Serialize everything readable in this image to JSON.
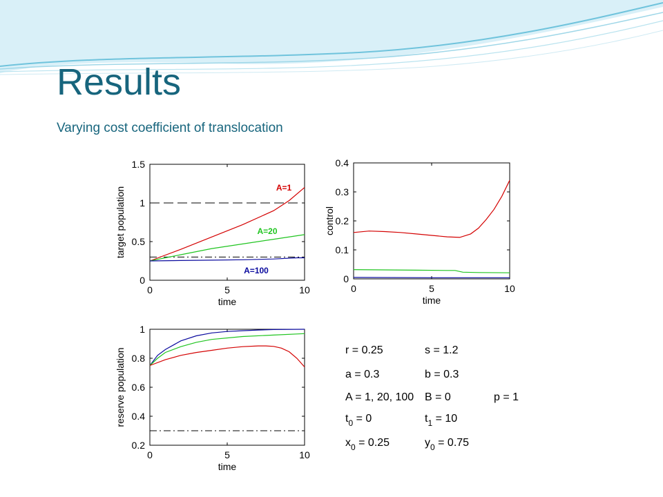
{
  "slide": {
    "title": "Results",
    "subtitle": "Varying cost coefficient of translocation"
  },
  "colors": {
    "title": "#17657d",
    "red": "#d40000",
    "green": "#1fc41f",
    "blue": "#0a0a9e",
    "wave": "#6fc3dc"
  },
  "chart_data": [
    {
      "type": "line",
      "xlabel": "time",
      "ylabel": "target population",
      "xlim": [
        0,
        10
      ],
      "ylim": [
        0,
        1.5
      ],
      "xticks": [
        0,
        5,
        10
      ],
      "yticks": [
        0,
        0.5,
        1,
        1.5
      ],
      "ytick_labels": [
        "0",
        "0.5",
        "1",
        "1.5"
      ],
      "series": [
        {
          "name": "A=1",
          "color": "#d40000",
          "x": [
            0,
            2,
            4,
            6,
            8,
            9,
            10
          ],
          "y": [
            0.25,
            0.4,
            0.56,
            0.72,
            0.9,
            1.03,
            1.2
          ]
        },
        {
          "name": "A=20",
          "color": "#1fc41f",
          "x": [
            0,
            2,
            4,
            6,
            8,
            10
          ],
          "y": [
            0.25,
            0.33,
            0.41,
            0.47,
            0.53,
            0.59
          ]
        },
        {
          "name": "A=100",
          "color": "#0a0a9e",
          "x": [
            0,
            2,
            4,
            6,
            8,
            9.5,
            10
          ],
          "y": [
            0.25,
            0.255,
            0.26,
            0.265,
            0.275,
            0.29,
            0.29
          ]
        }
      ],
      "reference_lines": [
        {
          "style": "dashed",
          "y": 1
        },
        {
          "style": "dashdot",
          "y": 0.3
        }
      ]
    },
    {
      "type": "line",
      "xlabel": "time",
      "ylabel": "control",
      "xlim": [
        0,
        10
      ],
      "ylim": [
        0,
        0.4
      ],
      "xticks": [
        0,
        5,
        10
      ],
      "yticks": [
        0,
        0.1,
        0.2,
        0.3,
        0.4
      ],
      "ytick_labels": [
        "0",
        "0.1",
        "0.2",
        "0.3",
        "0.4"
      ],
      "series": [
        {
          "color": "#d40000",
          "x": [
            0,
            1,
            2,
            3,
            4,
            5,
            6,
            6.8,
            7.5,
            8,
            8.5,
            9,
            9.5,
            10
          ],
          "y": [
            0.16,
            0.165,
            0.163,
            0.16,
            0.155,
            0.15,
            0.145,
            0.143,
            0.155,
            0.175,
            0.205,
            0.24,
            0.285,
            0.34
          ]
        },
        {
          "color": "#1fc41f",
          "x": [
            0,
            2,
            4,
            6,
            6.5,
            7,
            8,
            10
          ],
          "y": [
            0.032,
            0.031,
            0.03,
            0.029,
            0.029,
            0.023,
            0.022,
            0.021
          ]
        },
        {
          "color": "#0a0a9e",
          "x": [
            0,
            5,
            10
          ],
          "y": [
            0.005,
            0.004,
            0.004
          ]
        }
      ]
    },
    {
      "type": "line",
      "xlabel": "time",
      "ylabel": "reserve population",
      "xlim": [
        0,
        10
      ],
      "ylim": [
        0.2,
        1
      ],
      "xticks": [
        0,
        5,
        10
      ],
      "yticks": [
        0.2,
        0.4,
        0.6,
        0.8,
        1
      ],
      "ytick_labels": [
        "0.2",
        "0.4",
        "0.6",
        "0.8",
        "1"
      ],
      "series": [
        {
          "color": "#0a0a9e",
          "x": [
            0,
            0.5,
            1,
            2,
            3,
            4,
            5,
            6,
            7,
            8,
            10
          ],
          "y": [
            0.75,
            0.82,
            0.86,
            0.92,
            0.955,
            0.975,
            0.985,
            0.99,
            0.995,
            0.998,
            1.0
          ]
        },
        {
          "color": "#1fc41f",
          "x": [
            0,
            0.5,
            1,
            2,
            3,
            4,
            6,
            8,
            10
          ],
          "y": [
            0.75,
            0.8,
            0.84,
            0.88,
            0.91,
            0.93,
            0.95,
            0.96,
            0.97
          ]
        },
        {
          "color": "#d40000",
          "x": [
            0,
            1,
            2,
            3,
            4,
            5,
            6,
            7,
            7.5,
            8,
            8.5,
            9,
            9.5,
            10
          ],
          "y": [
            0.75,
            0.79,
            0.82,
            0.84,
            0.855,
            0.87,
            0.88,
            0.885,
            0.885,
            0.882,
            0.87,
            0.845,
            0.8,
            0.74
          ]
        }
      ],
      "reference_lines": [
        {
          "style": "dashdot",
          "y": 0.3
        }
      ]
    }
  ],
  "parameters": [
    [
      "r = 0.25",
      "s = 1.2",
      ""
    ],
    [
      "a = 0.3",
      "b = 0.3",
      ""
    ],
    [
      "A = 1, 20, 100",
      "B = 0",
      "p = 1"
    ]
  ],
  "init_params": {
    "t0": {
      "var": "t",
      "sub": "0",
      "rest": " = 0"
    },
    "t1": {
      "var": "t",
      "sub": "1",
      "rest": " = 10"
    },
    "x0": {
      "var": "x",
      "sub": "0",
      "rest": " = 0.25"
    },
    "y0": {
      "var": "y",
      "sub": "0",
      "rest": " = 0.75"
    }
  }
}
